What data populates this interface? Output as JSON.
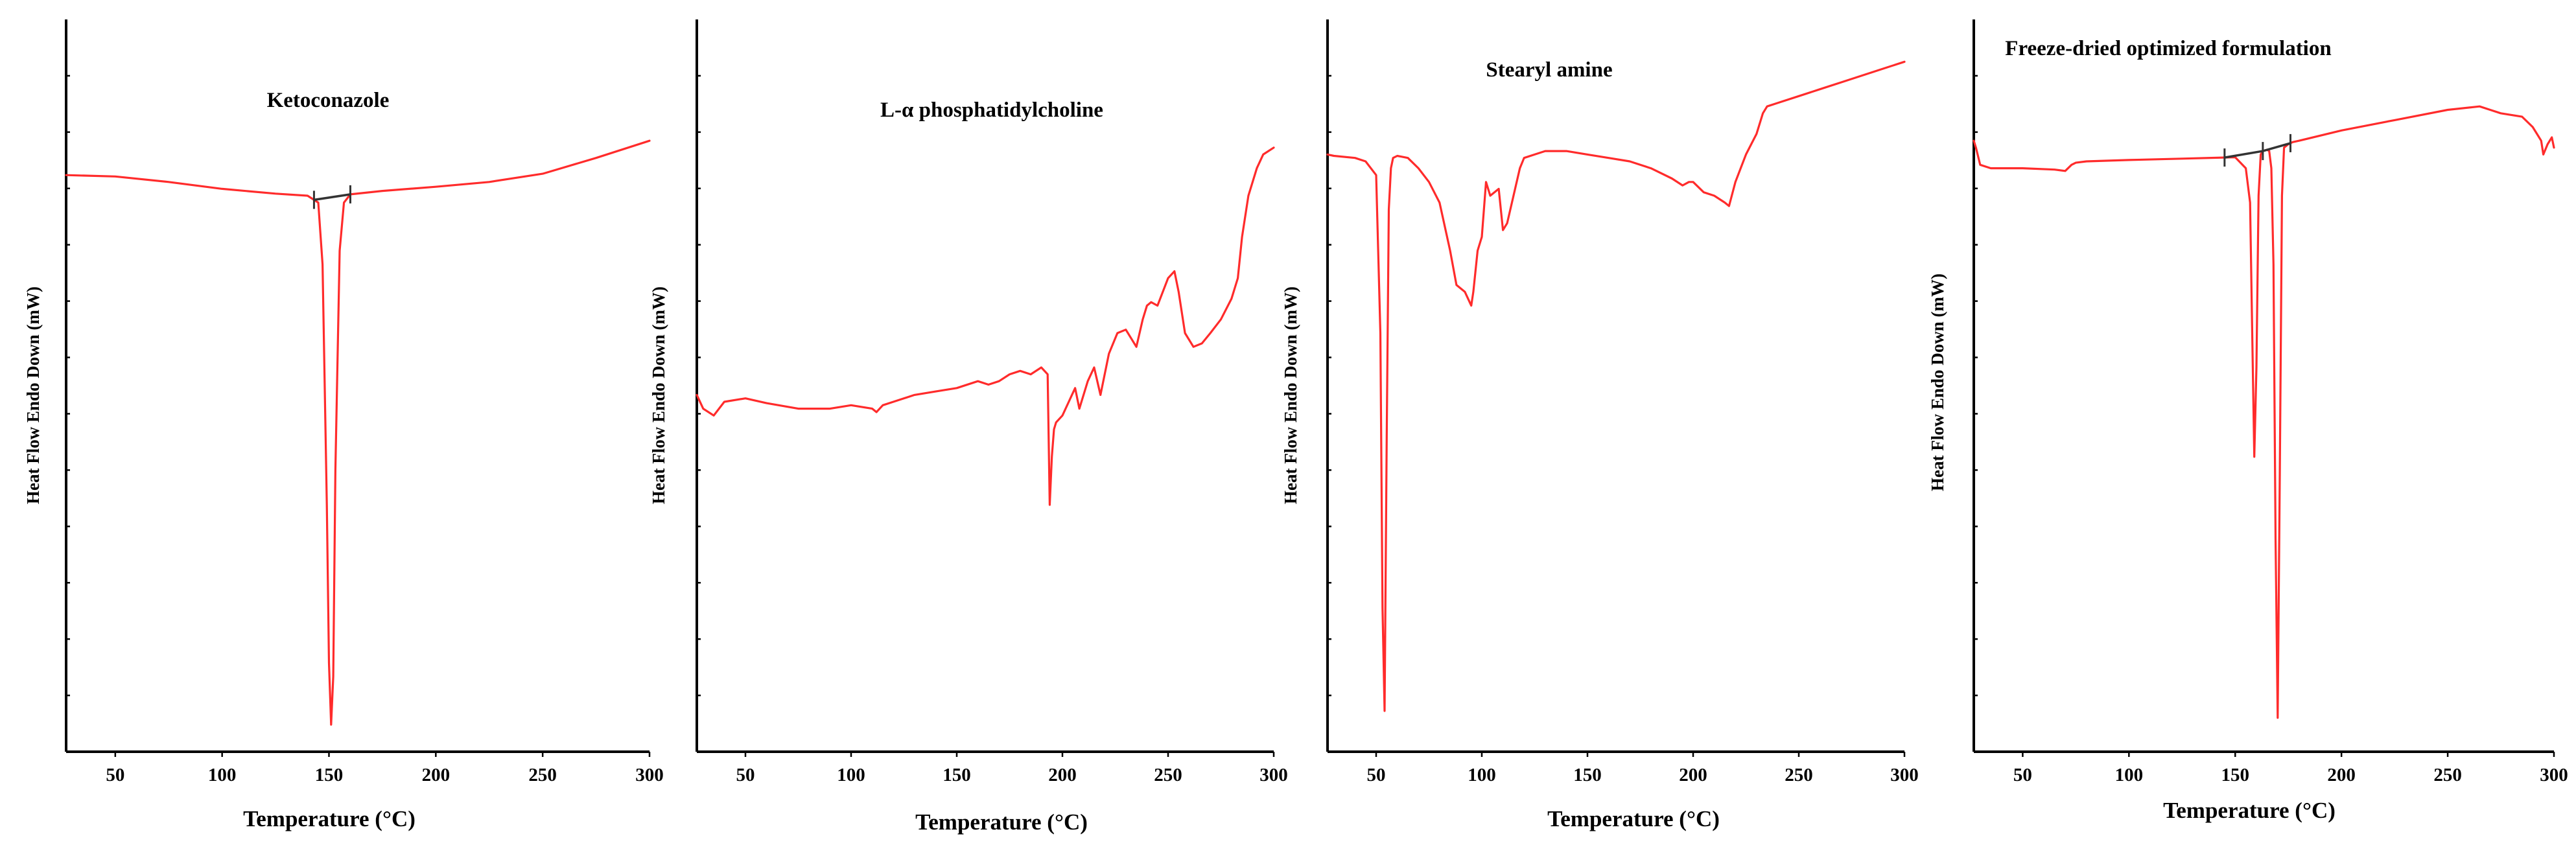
{
  "chart_data": [
    {
      "type": "line",
      "title": "Ketoconazole",
      "xlabel": "Temperature (°C)",
      "ylabel": "Heat Flow Endo Down (mW)",
      "xlim": [
        27,
        300
      ],
      "ylim": [
        0,
        100
      ],
      "xticks": [
        50,
        100,
        150,
        200,
        250,
        300
      ],
      "grid": false,
      "line_color": "#ff2b2b",
      "series": [
        {
          "x": [
            27,
            50,
            75,
            100,
            125,
            140,
            145,
            147,
            149,
            150,
            151,
            152,
            153,
            155,
            157,
            160,
            175,
            200,
            225,
            250,
            275,
            300
          ],
          "y": [
            83,
            82.8,
            82,
            81,
            80.3,
            80,
            79,
            70,
            35,
            12,
            3,
            10,
            40,
            72,
            79,
            80.2,
            80.7,
            81.3,
            82,
            83.2,
            85.5,
            88
          ]
        }
      ],
      "onset_marker": {
        "x": [
          143,
          160
        ]
      }
    },
    {
      "type": "line",
      "title": "L-α phosphatidylcholine",
      "xlabel": "Temperature (°C)",
      "ylabel": "Heat Flow Endo Down (mW)",
      "xlim": [
        27,
        300
      ],
      "ylim": [
        0,
        100
      ],
      "xticks": [
        50,
        100,
        150,
        200,
        250,
        300
      ],
      "grid": false,
      "line_color": "#ff2b2b",
      "series": [
        {
          "x": [
            27,
            30,
            35,
            40,
            50,
            60,
            75,
            90,
            100,
            110,
            112,
            115,
            120,
            130,
            140,
            150,
            160,
            165,
            170,
            175,
            180,
            185,
            190,
            193,
            194,
            195,
            196,
            197,
            200,
            203,
            206,
            208,
            212,
            215,
            218,
            222,
            226,
            230,
            235,
            238,
            240,
            242,
            245,
            250,
            253,
            255,
            258,
            262,
            266,
            270,
            275,
            280,
            283,
            285,
            288,
            292,
            295,
            300
          ],
          "y": [
            51,
            49,
            48,
            50,
            50.5,
            49.8,
            49,
            49,
            49.5,
            49,
            48.5,
            49.5,
            50,
            51,
            51.5,
            52,
            53,
            52.5,
            53,
            54,
            54.5,
            54,
            55,
            54,
            35,
            42,
            46,
            47,
            48,
            50,
            52,
            49,
            53,
            55,
            51,
            57,
            60,
            60.5,
            58,
            62,
            64,
            64.5,
            64,
            68,
            69,
            66,
            60,
            58,
            58.5,
            60,
            62,
            65,
            68,
            74,
            80,
            84,
            86,
            87
          ]
        }
      ]
    },
    {
      "type": "line",
      "title": "Stearyl amine",
      "xlabel": "Temperature (°C)",
      "ylabel": "Heat Flow Endo Down (mW)",
      "xlim": [
        27,
        300
      ],
      "ylim": [
        0,
        100
      ],
      "xticks": [
        50,
        100,
        150,
        200,
        250,
        300
      ],
      "grid": false,
      "line_color": "#ff2b2b",
      "series": [
        {
          "x": [
            27,
            30,
            40,
            45,
            50,
            52,
            53,
            54,
            55,
            56,
            57,
            58,
            60,
            65,
            70,
            75,
            80,
            85,
            88,
            92,
            95,
            96,
            98,
            100,
            102,
            104,
            108,
            110,
            112,
            115,
            118,
            120,
            125,
            130,
            140,
            150,
            160,
            170,
            180,
            190,
            195,
            198,
            200,
            205,
            210,
            215,
            217,
            220,
            225,
            230,
            233,
            235,
            240,
            250,
            260,
            270,
            280,
            290,
            300
          ],
          "y": [
            86,
            85.8,
            85.5,
            85,
            83,
            60,
            20,
            5,
            45,
            78,
            84,
            85.5,
            85.8,
            85.5,
            84,
            82,
            79,
            72,
            67,
            66,
            64,
            66,
            72,
            74,
            82,
            80,
            81,
            75,
            76,
            80,
            84,
            85.5,
            86,
            86.5,
            86.5,
            86,
            85.5,
            85,
            84,
            82.5,
            81.5,
            82,
            82,
            80.5,
            80,
            79,
            78.5,
            82,
            86,
            89,
            92,
            93,
            93.5,
            94.5,
            95.5,
            96.5,
            97.5,
            98.5,
            99.5
          ]
        }
      ]
    },
    {
      "type": "line",
      "title": "Freeze-dried optimized formulation",
      "xlabel": "Temperature (°C)",
      "ylabel": "Heat Flow Endo Down (mW)",
      "xlim": [
        27,
        300
      ],
      "ylim": [
        0,
        100
      ],
      "xticks": [
        50,
        100,
        150,
        200,
        250,
        300
      ],
      "grid": false,
      "line_color": "#ff2b2b",
      "series": [
        {
          "x": [
            27,
            28,
            30,
            35,
            50,
            65,
            70,
            73,
            75,
            80,
            100,
            125,
            150,
            155,
            157,
            158,
            159,
            160,
            161,
            162,
            163,
            165,
            166,
            167,
            168,
            169,
            170,
            171,
            172,
            173,
            175,
            177,
            180,
            200,
            225,
            250,
            265,
            270,
            275,
            285,
            290,
            292,
            294,
            295,
            297,
            299,
            300
          ],
          "y": [
            88,
            87,
            84.5,
            84,
            84,
            83.8,
            83.6,
            84.5,
            84.8,
            85,
            85.2,
            85.4,
            85.6,
            84,
            79,
            60,
            42,
            55,
            80,
            86,
            86.5,
            86.7,
            86.5,
            84,
            70,
            30,
            4,
            40,
            80,
            87,
            87.5,
            87.8,
            88,
            89.5,
            91,
            92.5,
            93,
            92.5,
            92,
            91.5,
            90,
            89,
            88,
            86,
            87.5,
            88.5,
            87
          ]
        }
      ],
      "onset_marker": {
        "x": [
          145,
          163,
          176
        ]
      }
    }
  ]
}
